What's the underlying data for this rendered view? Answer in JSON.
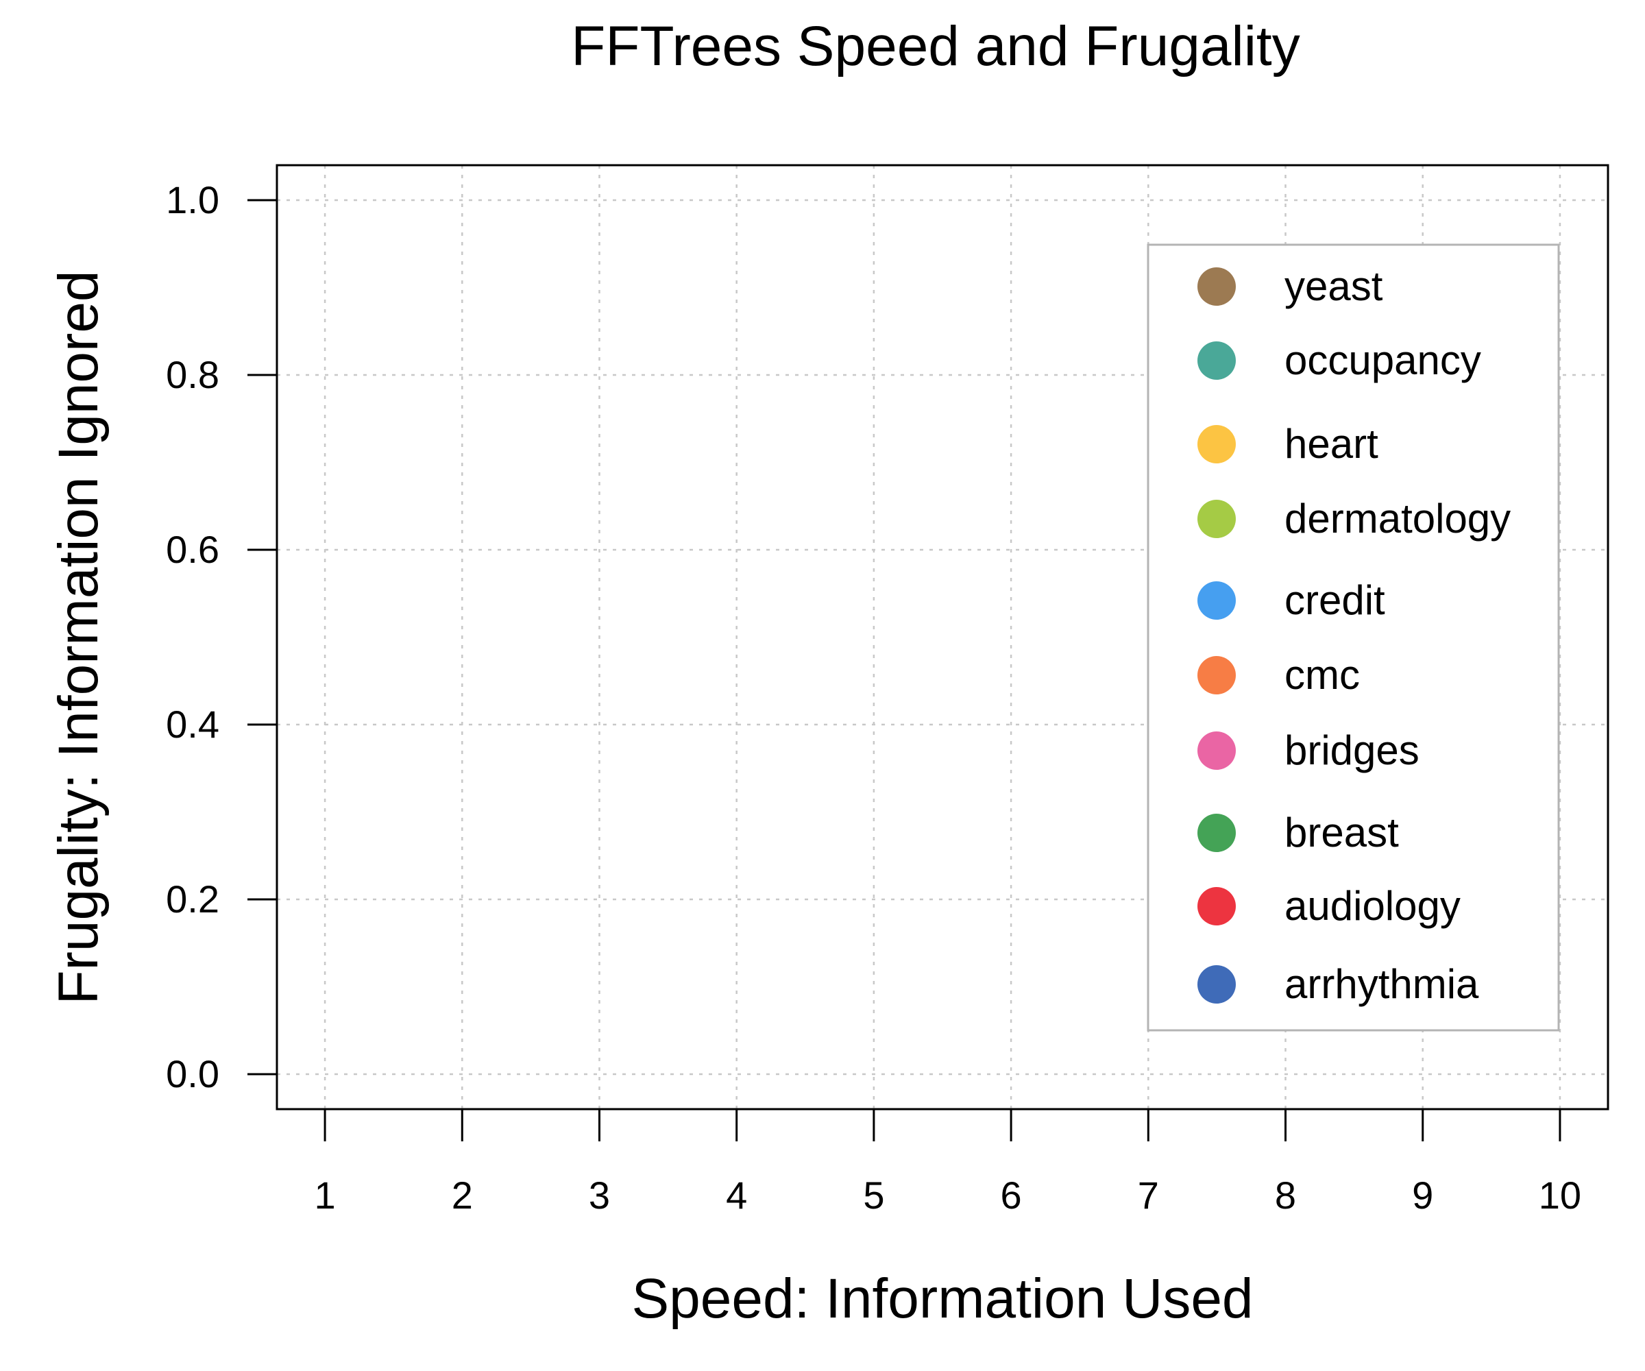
{
  "chart_data": {
    "type": "scatter",
    "title": "FFTrees Speed and Frugality",
    "xlabel": "Speed: Information Used",
    "ylabel": "Frugality: Information Ignored",
    "xlim": [
      0.65,
      10.35
    ],
    "ylim": [
      -0.04,
      1.04
    ],
    "x_ticks": [
      1,
      2,
      3,
      4,
      5,
      6,
      7,
      8,
      9,
      10
    ],
    "x_tick_labels": [
      "1",
      "2",
      "3",
      "4",
      "5",
      "6",
      "7",
      "8",
      "9",
      "10"
    ],
    "y_ticks": [
      0.0,
      0.2,
      0.4,
      0.6,
      0.8,
      1.0
    ],
    "y_tick_labels": [
      "0.0",
      "0.2",
      "0.4",
      "0.6",
      "0.8",
      "1.0"
    ],
    "grid": true,
    "legend_position": "top-right",
    "series": [
      {
        "name": "yeast",
        "color": "#9c7a52",
        "points": []
      },
      {
        "name": "occupancy",
        "color": "#4aa898",
        "points": []
      },
      {
        "name": "heart",
        "color": "#fcc443",
        "points": []
      },
      {
        "name": "dermatology",
        "color": "#a5cb45",
        "points": []
      },
      {
        "name": "credit",
        "color": "#469ff0",
        "points": []
      },
      {
        "name": "cmc",
        "color": "#f77d45",
        "points": []
      },
      {
        "name": "bridges",
        "color": "#ea65a4",
        "points": []
      },
      {
        "name": "breast",
        "color": "#44a356",
        "points": []
      },
      {
        "name": "audiology",
        "color": "#ed3440",
        "points": []
      },
      {
        "name": "arrhythmia",
        "color": "#3f6bb8",
        "points": []
      }
    ]
  }
}
